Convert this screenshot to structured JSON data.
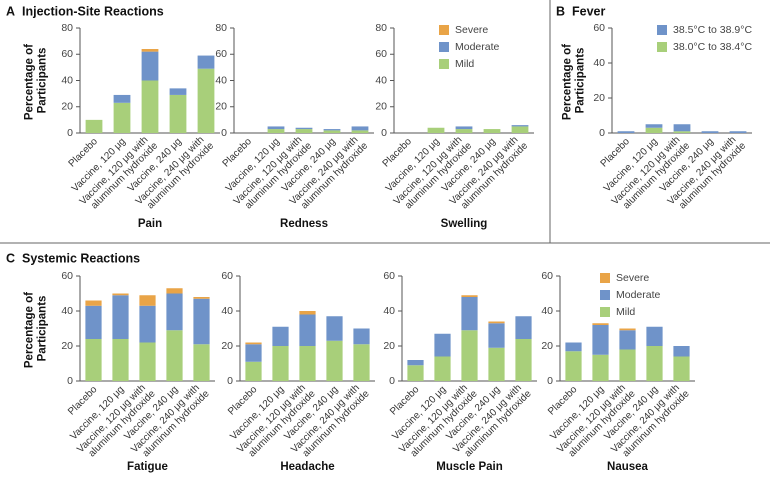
{
  "chart_data": [
    {
      "type": "bar",
      "stacked": true,
      "label": "A",
      "title": "Injection-Site Reactions",
      "ylabel": "Percentage of Participants",
      "ylim": [
        0,
        80
      ],
      "yticks": [
        0,
        20,
        40,
        60,
        80
      ],
      "categories": [
        "Placebo",
        "Vaccine, 120 μg",
        "Vaccine, 120 μg with aluminum hydroxide",
        "Vaccine, 240 μg",
        "Vaccine, 240 μg with aluminum hydroxide"
      ],
      "subplots": [
        "Pain",
        "Redness",
        "Swelling"
      ],
      "legend": "upper right",
      "series": [
        {
          "name": "Mild",
          "color": "#a8cf7a",
          "values": [
            [
              10,
              23,
              40,
              29,
              49
            ],
            [
              0,
              3,
              3,
              2,
              2
            ],
            [
              0,
              4,
              3,
              3,
              5
            ]
          ]
        },
        {
          "name": "Moderate",
          "color": "#6f93c9",
          "values": [
            [
              0,
              6,
              22,
              5,
              10
            ],
            [
              0,
              2,
              1,
              1,
              3
            ],
            [
              0,
              0,
              2,
              0,
              1
            ]
          ]
        },
        {
          "name": "Severe",
          "color": "#e9a447",
          "values": [
            [
              0,
              0,
              2,
              0,
              0
            ],
            [
              0,
              0,
              0,
              0,
              0
            ],
            [
              0,
              0,
              0,
              0,
              0
            ]
          ]
        }
      ]
    },
    {
      "type": "bar",
      "stacked": true,
      "label": "B",
      "title": "Fever",
      "ylabel": "Percentage of Participants",
      "ylim": [
        0,
        60
      ],
      "yticks": [
        0,
        20,
        40,
        60
      ],
      "categories": [
        "Placebo",
        "Vaccine, 120 μg",
        "Vaccine, 120 μg with aluminum hydroxide",
        "Vaccine, 240 μg",
        "Vaccine, 240 μg with aluminum hydroxide"
      ],
      "legend": "upper right",
      "series": [
        {
          "name": "38.0°C to 38.4°C",
          "color": "#a8cf7a",
          "values": [
            0,
            3,
            1,
            0,
            0
          ]
        },
        {
          "name": "38.5°C to 38.9°C",
          "color": "#6f93c9",
          "values": [
            1,
            2,
            4,
            1,
            1
          ]
        }
      ]
    },
    {
      "type": "bar",
      "stacked": true,
      "label": "C",
      "title": "Systemic Reactions",
      "ylabel": "Percentage of Participants",
      "ylim": [
        0,
        60
      ],
      "yticks": [
        0,
        20,
        40,
        60
      ],
      "categories": [
        "Placebo",
        "Vaccine, 120 μg",
        "Vaccine, 120 μg with aluminum hydroxide",
        "Vaccine, 240 μg",
        "Vaccine, 240 μg with aluminum hydroxide"
      ],
      "subplots": [
        "Fatigue",
        "Headache",
        "Muscle Pain",
        "Nausea"
      ],
      "legend": "upper right",
      "series": [
        {
          "name": "Mild",
          "color": "#a8cf7a",
          "values": [
            [
              24,
              24,
              22,
              29,
              21
            ],
            [
              11,
              20,
              20,
              23,
              21
            ],
            [
              9,
              14,
              29,
              19,
              24
            ],
            [
              17,
              15,
              18,
              20,
              14
            ]
          ]
        },
        {
          "name": "Moderate",
          "color": "#6f93c9",
          "values": [
            [
              19,
              25,
              21,
              21,
              26
            ],
            [
              10,
              11,
              18,
              14,
              9
            ],
            [
              3,
              13,
              19,
              14,
              13
            ],
            [
              5,
              17,
              11,
              11,
              6
            ]
          ]
        },
        {
          "name": "Severe",
          "color": "#e9a447",
          "values": [
            [
              3,
              1,
              6,
              3,
              1
            ],
            [
              1,
              0,
              2,
              0,
              0
            ],
            [
              0,
              0,
              1,
              1,
              0
            ],
            [
              0,
              1,
              1,
              0,
              0
            ]
          ]
        }
      ]
    }
  ]
}
